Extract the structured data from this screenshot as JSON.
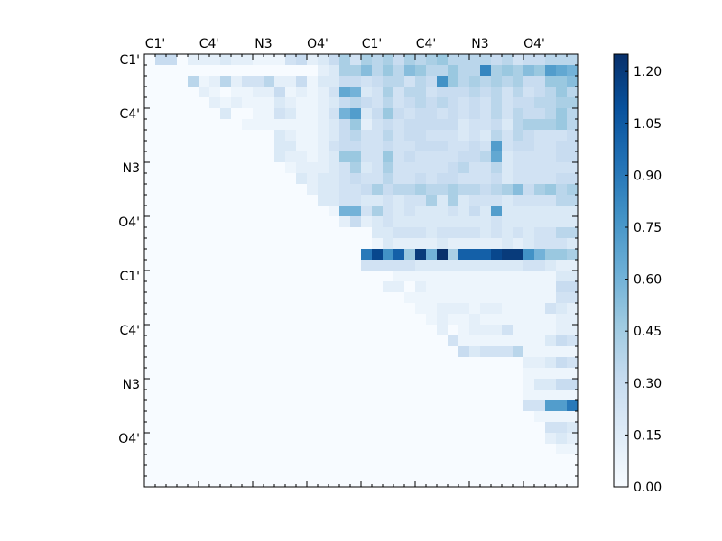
{
  "chart_data": {
    "type": "heatmap",
    "title": "",
    "xlabel": "",
    "ylabel": "",
    "x_tick_labels": [
      "C1'",
      "C4'",
      "N3",
      "O4'",
      "C1'",
      "C4'",
      "N3",
      "O4'"
    ],
    "y_tick_labels": [
      "C1'",
      "C4'",
      "N3",
      "O4'",
      "C1'",
      "C4'",
      "N3",
      "O4'"
    ],
    "colorbar": {
      "cmap": "Blues",
      "vmin": 0.0,
      "vmax": 1.25,
      "tick_labels": [
        "0.00",
        "0.15",
        "0.30",
        "0.45",
        "0.60",
        "0.75",
        "0.90",
        "1.05",
        "1.20"
      ]
    },
    "n": 40,
    "rows": [
      "0 5 5 0 2 2 2 3 2 2 1 1 1 4 5 2 3 5 7 4 7 6 7 5 7 6 7 8 6 6 6 6 5 6 4 5 5 6 6 6",
      "0 0 0 0 0 0 0 0 0 0 0 0 0 0 0 0 2 3 7 7 9 6 8 6 9 8 6 6 8 6 6 14 7 8 7 9 8 12 11 10",
      "0 0 0 0 6 1 2 6 2 4 4 6 2 2 5 1 3 3 5 5 4 5 6 6 4 6 5 13 8 6 7 6 7 6 7 5 5 8 8 9",
      "0 0 0 0 0 2 1 0 1 1 2 2 5 1 2 1 2 4 11 10 3 4 7 4 6 6 4 5 5 5 6 5 6 4 6 4 5 6 8 6",
      "0 0 0 0 0 0 2 1 2 1 1 1 3 2 1 1 2 3 5 6 5 4 6 4 5 6 5 6 5 4 5 4 6 4 5 5 6 6 7 7",
      "0 0 0 0 0 0 0 3 0 0 1 1 4 3 1 1 2 4 10 12 3 5 8 5 4 5 5 4 5 4 5 4 6 4 6 5 5 6 8 6",
      "0 0 0 0 0 0 0 0 0 1 1 1 1 1 1 1 2 3 5 8 2 4 5 4 5 5 5 5 5 3 4 4 5 3 6 7 7 7 8 6",
      "0 0 0 0 0 0 0 0 0 0 0 0 3 2 1 1 2 3 5 6 4 4 6 4 5 5 4 4 4 3 4 3 6 4 6 5 4 4 4 5",
      "0 0 0 0 0 0 0 0 0 0 0 0 3 3 1 1 2 4 5 5 4 4 5 4 4 5 5 5 4 4 5 4 12 4 5 5 4 4 5 5",
      "0 0 0 0 0 0 0 0 0 0 0 0 3 2 2 1 2 3 8 8 4 4 8 4 5 4 4 4 4 5 5 6 11 3 4 4 4 4 5 5",
      "0 0 0 0 0 0 0 0 0 0 0 0 0 1 2 2 2 3 4 7 3 4 7 4 4 4 4 4 5 6 4 4 6 3 4 4 4 4 4 4",
      "0 0 0 0 0 0 0 0 0 0 0 0 0 0 3 2 3 3 4 5 4 4 6 4 4 5 4 5 5 4 4 4 5 3 4 4 4 4 5 5",
      "0 0 0 0 0 0 0 0 0 0 0 0 0 0 0 2 3 3 4 4 5 7 5 6 6 7 6 6 7 6 6 5 6 7 9 5 7 8 6 7",
      "0 0 0 0 0 0 0 0 0 0 0 0 0 0 0 0 3 3 4 4 3 3 4 3 4 4 7 3 7 3 4 4 4 3 4 4 4 4 6 6",
      "0 0 0 0 0 0 0 0 0 0 0 0 0 0 0 0 0 1 10 10 4 7 4 3 4 3 3 3 4 3 5 3 12 3 3 3 3 3 3 3",
      "0 0 0 0 0 0 0 0 0 0 0 0 0 0 0 0 0 0 2 5 2 3 4 3 3 3 3 3 3 3 3 3 4 3 3 3 3 3 3 3",
      "0 0 0 0 0 0 0 0 0 0 0 0 0 0 0 0 0 0 0 0 0 3 3 4 4 4 3 4 4 4 4 3 4 3 4 3 4 4 6 6",
      "0 0 0 0 0 0 0 0 0 0 0 0 0 0 0 0 0 0 0 0 0 1 3 2 2 2 2 3 2 2 2 2 2 3 2 3 4 4 4 3",
      "0 0 0 0 0 0 0 0 0 0 0 0 0 0 0 0 0 0 0 0 15 19 13 17 8 20 10 21 7 17 17 17 19 20 20 13 10 8 8 7",
      "0 0 0 0 0 0 0 0 0 0 0 0 0 0 0 0 0 0 0 0 4 4 4 4 4 3 3 3 3 3 3 3 3 3 3 4 4 3 2 2",
      "0 0 0 0 0 0 0 0 0 0 0 0 0 0 0 0 0 0 0 0 0 0 0 1 1 1 1 1 1 1 1 1 1 1 1 1 1 1 3 3",
      "0 0 0 0 0 0 0 0 0 0 0 0 0 0 0 0 0 0 0 0 0 0 2 2 0 2 1 1 1 1 1 1 1 1 1 1 1 1 5 5",
      "0 0 0 0 0 0 0 0 0 0 0 0 0 0 0 0 0 0 0 0 0 0 0 0 1 1 1 1 1 1 1 1 1 1 1 1 1 1 4 4",
      "0 0 0 0 0 0 0 0 0 0 0 0 0 0 0 0 0 0 0 0 0 0 0 0 0 1 1 2 2 2 1 2 2 1 1 1 1 4 3 2",
      "0 0 0 0 0 0 0 0 0 0 0 0 0 0 0 0 0 0 0 0 0 0 0 0 0 0 1 2 1 1 2 1 1 1 1 1 1 1 2 2",
      "0 0 0 0 0 0 0 0 0 0 0 0 0 0 0 0 0 0 0 0 0 0 0 0 0 0 0 2 0 1 2 2 2 4 1 1 1 1 2 2",
      "0 0 0 0 0 0 0 0 0 0 0 0 0 0 0 0 0 0 0 0 0 0 0 0 0 0 0 0 4 1 1 1 1 1 1 1 1 3 5 4",
      "0 0 0 0 0 0 0 0 0 0 0 0 0 0 0 0 0 0 0 0 0 0 0 0 0 0 0 0 0 5 3 4 4 4 6 1 1 1 1 1",
      "0 0 0 0 0 0 0 0 0 0 0 0 0 0 0 0 0 0 0 0 0 0 0 0 0 0 0 0 0 0 0 0 0 0 0 2 2 3 5 4",
      "0 0 0 0 0 0 0 0 0 0 0 0 0 0 0 0 0 0 0 0 0 0 0 0 0 0 0 0 0 0 0 0 0 0 0 1 1 1 1 1",
      "0 0 0 0 0 0 0 0 0 0 0 0 0 0 0 0 0 0 0 0 0 0 0 0 0 0 0 0 0 0 0 0 0 0 0 1 3 3 5 5",
      "0 0 0 0 0 0 0 0 0 0 0 0 0 0 0 0 0 0 0 0 0 0 0 0 0 0 0 0 0 0 0 0 0 0 0 1 1 1 1 1",
      "0 0 0 0 0 0 0 0 0 0 0 0 0 0 0 0 0 0 0 0 0 0 0 0 0 0 0 0 0 0 0 0 0 0 0 4 4 12 12 15",
      "0 0 0 0 0 0 0 0 0 0 0 0 0 0 0 0 0 0 0 0 0 0 0 0 0 0 0 0 0 0 0 0 0 0 0 0 1 1 1 1",
      "0 0 0 0 0 0 0 0 0 0 0 0 0 0 0 0 0 0 0 0 0 0 0 0 0 0 0 0 0 0 0 0 0 0 0 0 0 4 4 3",
      "0 0 0 0 0 0 0 0 0 0 0 0 0 0 0 0 0 0 0 0 0 0 0 0 0 0 0 0 0 0 0 0 0 0 0 0 0 2 3 2",
      "0 0 0 0 0 0 0 0 0 0 0 0 0 0 0 0 0 0 0 0 0 0 0 0 0 0 0 0 0 0 0 0 0 0 0 0 0 0 1 1",
      "0 0 0 0 0 0 0 0 0 0 0 0 0 0 0 0 0 0 0 0 0 0 0 0 0 0 0 0 0 0 0 0 0 0 0 0 0 0 0 0",
      "0 0 0 0 0 0 0 0 0 0 0 0 0 0 0 0 0 0 0 0 0 0 0 0 0 0 0 0 0 0 0 0 0 0 0 0 0 0 0 0",
      "0 0 0 0 0 0 0 0 0 0 0 0 0 0 0 0 0 0 0 0 0 0 0 0 0 0 0 0 0 0 0 0 0 0 0 0 0 0 0 0"
    ],
    "value_scale": 0.06,
    "grid": false,
    "legend": "none"
  }
}
